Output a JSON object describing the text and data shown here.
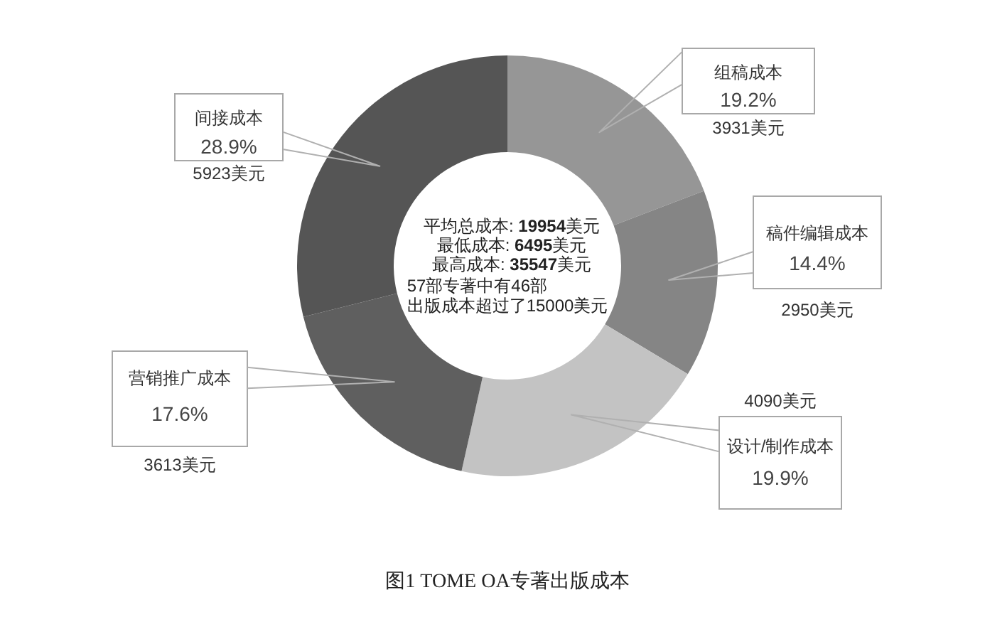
{
  "chart_data": {
    "type": "donut",
    "title": "图1 TOME OA专著出版成本",
    "categories": [
      "组稿成本",
      "稿件编辑成本",
      "设计/制作成本",
      "营销推广成本",
      "间接成本"
    ],
    "values": [
      19.2,
      14.4,
      19.9,
      17.6,
      28.9
    ],
    "colors": [
      "#969696",
      "#858585",
      "#c3c3c3",
      "#5f5f5f",
      "#555555"
    ],
    "value_labels": [
      "19.2%",
      "14.4%",
      "19.9%",
      "17.6%",
      "28.9%"
    ],
    "annotations": [
      {
        "text": "3931美元",
        "x": "组稿成本"
      },
      {
        "text": "2950美元",
        "x": "稿件编辑成本"
      },
      {
        "text": "4090美元",
        "x": "设计/制作成本"
      },
      {
        "text": "3613美元",
        "x": "营销推广成本"
      },
      {
        "text": "5923美元",
        "x": "间接成本"
      },
      "平均总成本: 19954美元",
      "最低成本: 6495美元",
      "最高成本: 35547美元",
      "57部专著中有46部",
      "出版成本超过了15000美元"
    ]
  }
}
